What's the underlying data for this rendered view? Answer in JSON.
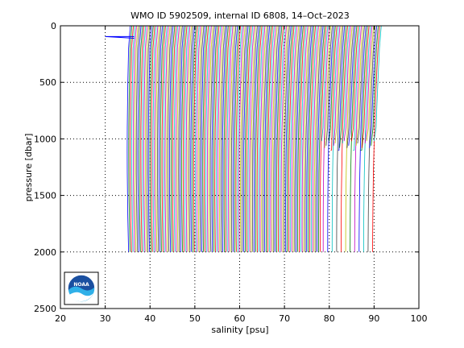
{
  "chart_data": {
    "type": "line",
    "title": "WMO ID 5902509, internal ID 6808, 14–Oct–2023",
    "xlabel": "salinity [psu]",
    "ylabel": "pressure [dbar]",
    "xlim": [
      20,
      100
    ],
    "ylim": [
      0,
      2500
    ],
    "y_reversed": true,
    "x_ticks": [
      20,
      30,
      40,
      50,
      60,
      70,
      80,
      90,
      100
    ],
    "y_ticks": [
      0,
      500,
      1000,
      1500,
      2000,
      2500
    ],
    "x_tick_labels": [
      "20",
      "30",
      "40",
      "50",
      "60",
      "70",
      "80",
      "90",
      "100"
    ],
    "y_tick_labels": [
      "0",
      "500",
      "1000",
      "1500",
      "2000",
      "2500"
    ],
    "grid": true,
    "grid_style": "dotted",
    "series_colors": [
      "#0000ff",
      "#008000",
      "#ff0000",
      "#00bfbf",
      "#bf00bf",
      "#bfbf00",
      "#404040"
    ],
    "series_description": "Stacked salinity profiles, each successive profile offset by a constant; about 165 profiles",
    "profiles": {
      "count": 165,
      "first_surface_salinity": 35.0,
      "last_surface_salinity": 91.0,
      "deep_salinity_first": 35.2,
      "deep_salinity_last": 90.0,
      "full_depth_profiles_max_pressure": 2000,
      "shallow_profiles_max_pressure": 1100,
      "early_spike": {
        "salinity": 30.0,
        "pressure": 95
      }
    },
    "logo": "noaa-logo"
  }
}
